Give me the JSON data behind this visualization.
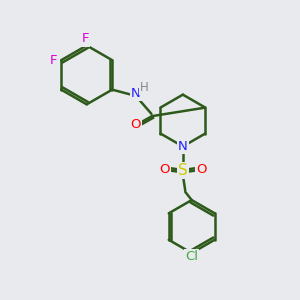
{
  "background_color": "#e8eaed",
  "bond_color": "#2d5a1b",
  "bond_width": 1.8,
  "atom_colors": {
    "F": "#dd00dd",
    "N": "#2020ff",
    "O": "#ff0000",
    "S": "#cccc00",
    "Cl": "#44aa44",
    "H": "#888888",
    "C": "#2d5a1b"
  },
  "font_size": 9.5,
  "s_font_size": 11
}
